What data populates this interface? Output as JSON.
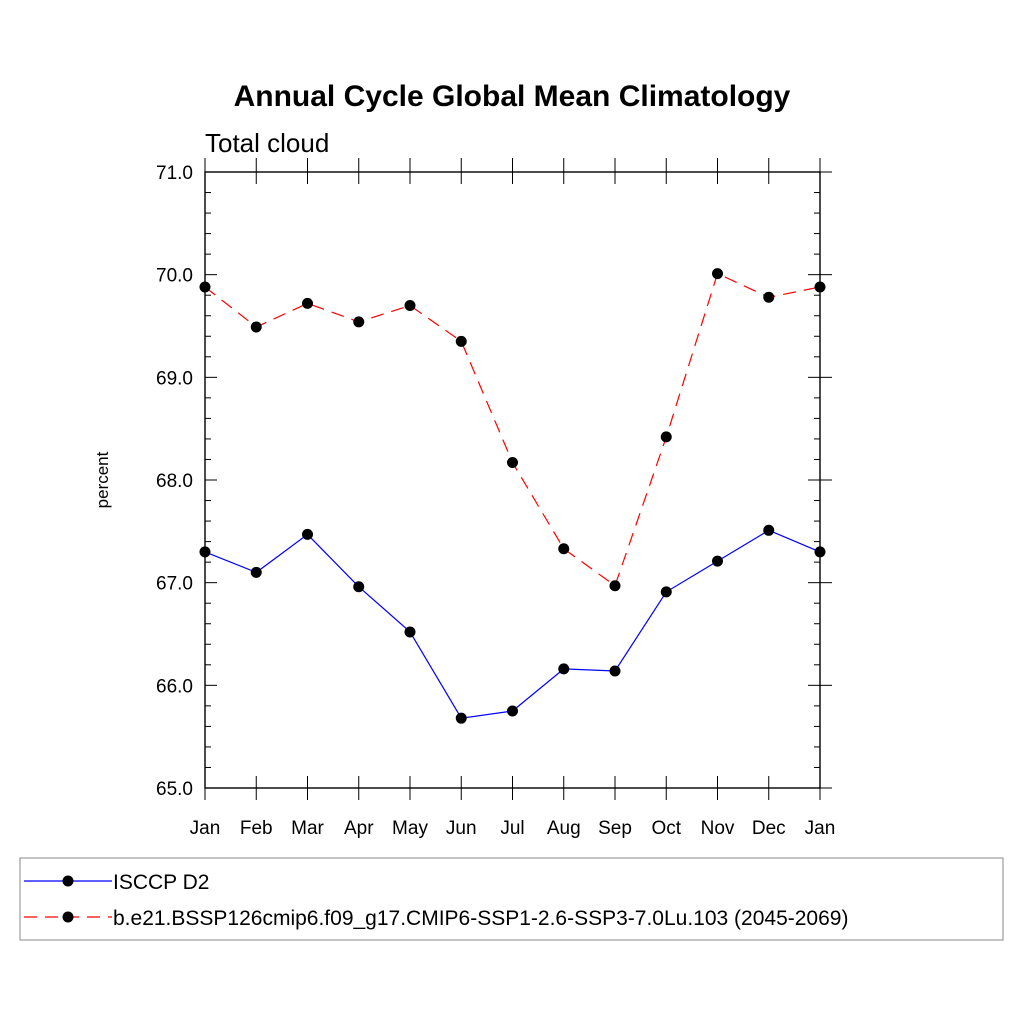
{
  "chart_data": {
    "type": "line",
    "title": "Annual Cycle Global Mean Climatology",
    "subtitle": "Total cloud",
    "ylabel": "percent",
    "xlabel": "",
    "ylim": [
      65.0,
      71.0
    ],
    "yticks": [
      "65.0",
      "66.0",
      "67.0",
      "68.0",
      "69.0",
      "70.0",
      "71.0"
    ],
    "categories": [
      "Jan",
      "Feb",
      "Mar",
      "Apr",
      "May",
      "Jun",
      "Jul",
      "Aug",
      "Sep",
      "Oct",
      "Nov",
      "Dec",
      "Jan"
    ],
    "series": [
      {
        "name": "ISCCP D2",
        "color": "#0000ff",
        "dash": "solid",
        "values": [
          67.3,
          67.1,
          67.47,
          66.96,
          66.52,
          65.68,
          65.75,
          66.16,
          66.14,
          66.91,
          67.21,
          67.51,
          67.3
        ]
      },
      {
        "name": "b.e21.BSSP126cmip6.f09_g17.CMIP6-SSP1-2.6-SSP3-7.0Lu.103 (2045-2069)",
        "color": "#ff0000",
        "dash": "dashed",
        "values": [
          69.88,
          69.49,
          69.72,
          69.54,
          69.7,
          69.35,
          68.17,
          67.33,
          66.97,
          68.42,
          70.01,
          69.78,
          69.88
        ]
      }
    ],
    "grid": false,
    "legend_position": "bottom"
  }
}
